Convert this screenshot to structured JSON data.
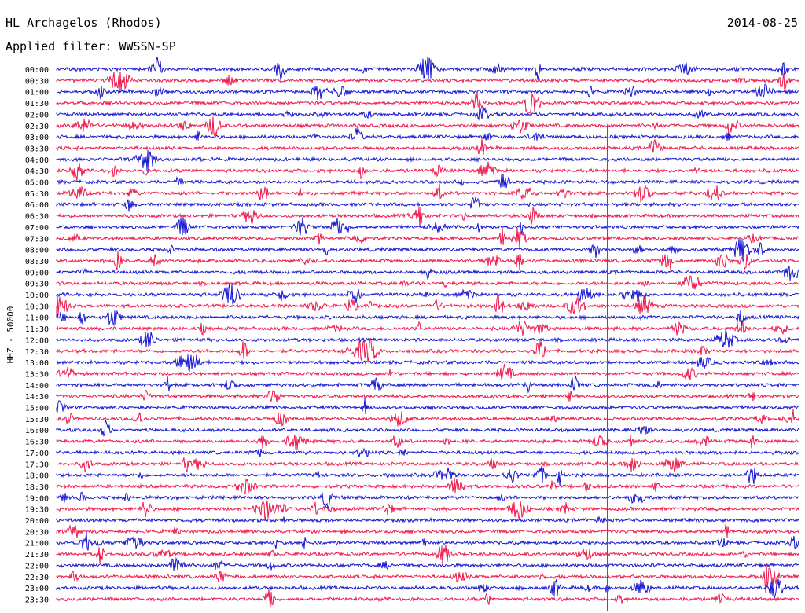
{
  "header": {
    "station": "HL Archagelos (Rhodos)",
    "date": "2014-08-25",
    "filter_label": "Applied filter:",
    "filter_name": "WWSSN-SP"
  },
  "chart_data": {
    "type": "helicorder",
    "channel_label": "HHZ - 50000",
    "row_labels": [
      "00:00",
      "00:30",
      "01:00",
      "01:30",
      "02:00",
      "02:30",
      "03:00",
      "03:30",
      "04:00",
      "04:30",
      "05:00",
      "05:30",
      "06:00",
      "06:30",
      "07:00",
      "07:30",
      "08:00",
      "08:30",
      "09:00",
      "09:30",
      "10:00",
      "10:30",
      "11:00",
      "11:30",
      "12:00",
      "12:30",
      "13:00",
      "13:30",
      "14:00",
      "14:30",
      "15:00",
      "15:30",
      "16:00",
      "16:30",
      "17:00",
      "17:30",
      "18:00",
      "18:30",
      "19:00",
      "19:30",
      "20:00",
      "20:30",
      "21:00",
      "21:30",
      "22:00",
      "22:30",
      "23:00",
      "23:30"
    ],
    "colors": [
      "#1414d2",
      "#f0154b"
    ],
    "time_axis_max_minutes": 30
  }
}
